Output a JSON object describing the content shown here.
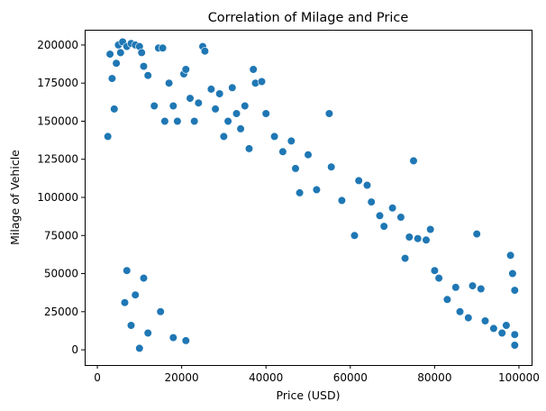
{
  "chart_data": {
    "type": "scatter",
    "title": "Correlation of Milage and Price",
    "xlabel": "Price (USD)",
    "ylabel": "Milage of Vehicle",
    "xlim": [
      -3000,
      103000
    ],
    "ylim": [
      -10000,
      210000
    ],
    "xticks": [
      0,
      20000,
      40000,
      60000,
      80000,
      100000
    ],
    "xtick_labels": [
      "0",
      "20000",
      "40000",
      "60000",
      "80000",
      "100000"
    ],
    "yticks": [
      0,
      25000,
      50000,
      75000,
      100000,
      125000,
      150000,
      175000,
      200000
    ],
    "ytick_labels": [
      "0",
      "25000",
      "50000",
      "75000",
      "100000",
      "125000",
      "150000",
      "175000",
      "200000"
    ],
    "grid": false,
    "marker_color": "#1f77b4",
    "marker_edge": "#ffffff",
    "points": [
      [
        2500,
        140000
      ],
      [
        3000,
        194000
      ],
      [
        3500,
        178000
      ],
      [
        4000,
        158000
      ],
      [
        4500,
        188000
      ],
      [
        5000,
        200000
      ],
      [
        5500,
        195000
      ],
      [
        6000,
        202000
      ],
      [
        7000,
        199000
      ],
      [
        8000,
        201000
      ],
      [
        9000,
        200000
      ],
      [
        10000,
        199000
      ],
      [
        10500,
        195000
      ],
      [
        11000,
        186000
      ],
      [
        12000,
        180000
      ],
      [
        13500,
        160000
      ],
      [
        14500,
        198000
      ],
      [
        15500,
        198000
      ],
      [
        16000,
        150000
      ],
      [
        17000,
        175000
      ],
      [
        18000,
        160000
      ],
      [
        19000,
        150000
      ],
      [
        20500,
        181000
      ],
      [
        21000,
        184000
      ],
      [
        22000,
        165000
      ],
      [
        23000,
        150000
      ],
      [
        24000,
        162000
      ],
      [
        25000,
        199000
      ],
      [
        25500,
        196000
      ],
      [
        27000,
        171000
      ],
      [
        28000,
        158000
      ],
      [
        29000,
        168000
      ],
      [
        30000,
        140000
      ],
      [
        31000,
        150000
      ],
      [
        32000,
        172000
      ],
      [
        33000,
        155000
      ],
      [
        34000,
        145000
      ],
      [
        35000,
        160000
      ],
      [
        36000,
        132000
      ],
      [
        37000,
        184000
      ],
      [
        37500,
        175000
      ],
      [
        39000,
        176000
      ],
      [
        40000,
        155000
      ],
      [
        42000,
        140000
      ],
      [
        44000,
        130000
      ],
      [
        46000,
        137000
      ],
      [
        47000,
        119000
      ],
      [
        48000,
        103000
      ],
      [
        50000,
        128000
      ],
      [
        52000,
        105000
      ],
      [
        55000,
        155000
      ],
      [
        55500,
        120000
      ],
      [
        58000,
        98000
      ],
      [
        61000,
        75000
      ],
      [
        62000,
        111000
      ],
      [
        64000,
        108000
      ],
      [
        65000,
        97000
      ],
      [
        67000,
        88000
      ],
      [
        68000,
        81000
      ],
      [
        70000,
        93000
      ],
      [
        72000,
        87000
      ],
      [
        73000,
        60000
      ],
      [
        74000,
        74000
      ],
      [
        75000,
        124000
      ],
      [
        76000,
        73000
      ],
      [
        78000,
        72000
      ],
      [
        79000,
        79000
      ],
      [
        80000,
        52000
      ],
      [
        81000,
        47000
      ],
      [
        83000,
        33000
      ],
      [
        85000,
        41000
      ],
      [
        86000,
        25000
      ],
      [
        88000,
        21000
      ],
      [
        89000,
        42000
      ],
      [
        90000,
        76000
      ],
      [
        91000,
        40000
      ],
      [
        92000,
        19000
      ],
      [
        94000,
        14000
      ],
      [
        96000,
        11000
      ],
      [
        97000,
        16000
      ],
      [
        98000,
        62000
      ],
      [
        98500,
        50000
      ],
      [
        99000,
        39000
      ],
      [
        99000,
        10000
      ],
      [
        99000,
        3000
      ],
      [
        10000,
        1000
      ],
      [
        12000,
        11000
      ],
      [
        15000,
        25000
      ],
      [
        18000,
        8000
      ],
      [
        21000,
        6000
      ],
      [
        6500,
        31000
      ],
      [
        8000,
        16000
      ],
      [
        9000,
        36000
      ],
      [
        7000,
        52000
      ],
      [
        11000,
        47000
      ]
    ]
  }
}
